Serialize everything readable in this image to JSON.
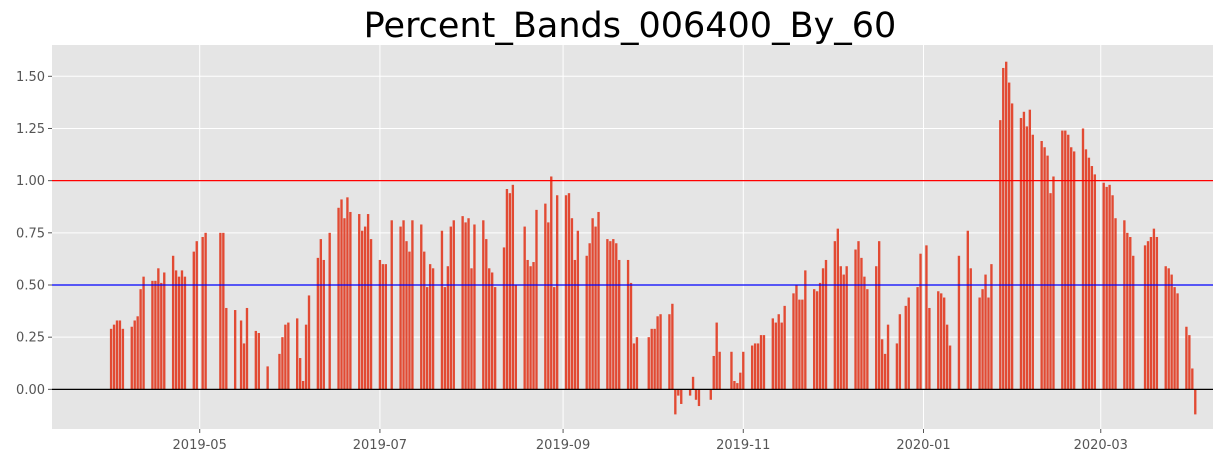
{
  "chart_data": {
    "type": "bar",
    "title": "Percent_Bands_006400_By_60",
    "xlabel": "",
    "ylabel": "",
    "x_range": [
      "2019-03-12",
      "2020-04-08"
    ],
    "ylim": [
      -0.19,
      1.65
    ],
    "grid": true,
    "legend": "none",
    "x_tick_labels": [
      "2019-05",
      "2019-07",
      "2019-09",
      "2019-11",
      "2020-01",
      "2020-03"
    ],
    "x_tick_dates": [
      "2019-05-01",
      "2019-07-01",
      "2019-09-01",
      "2019-11-01",
      "2020-01-01",
      "2020-03-01"
    ],
    "y_tick_labels": [
      "0.00",
      "0.25",
      "0.50",
      "0.75",
      "1.00",
      "1.25",
      "1.50"
    ],
    "y_ticks": [
      0.0,
      0.25,
      0.5,
      0.75,
      1.0,
      1.25,
      1.5
    ],
    "reference_lines": [
      {
        "y": 1.0,
        "color": "#ff0000"
      },
      {
        "y": 0.5,
        "color": "#0000ff"
      },
      {
        "y": 0.0,
        "color": "#000000"
      }
    ],
    "series": [
      {
        "color": "#e24a33",
        "points": [
          [
            "2019-04-01",
            0.29
          ],
          [
            "2019-04-02",
            0.31
          ],
          [
            "2019-04-03",
            0.33
          ],
          [
            "2019-04-04",
            0.33
          ],
          [
            "2019-04-05",
            0.29
          ],
          [
            "2019-04-08",
            0.3
          ],
          [
            "2019-04-09",
            0.33
          ],
          [
            "2019-04-10",
            0.35
          ],
          [
            "2019-04-11",
            0.48
          ],
          [
            "2019-04-12",
            0.54
          ],
          [
            "2019-04-15",
            0.52
          ],
          [
            "2019-04-16",
            0.52
          ],
          [
            "2019-04-17",
            0.58
          ],
          [
            "2019-04-18",
            0.51
          ],
          [
            "2019-04-19",
            0.56
          ],
          [
            "2019-04-22",
            0.64
          ],
          [
            "2019-04-23",
            0.57
          ],
          [
            "2019-04-24",
            0.54
          ],
          [
            "2019-04-25",
            0.57
          ],
          [
            "2019-04-26",
            0.54
          ],
          [
            "2019-04-29",
            0.66
          ],
          [
            "2019-04-30",
            0.71
          ],
          [
            "2019-05-02",
            0.73
          ],
          [
            "2019-05-03",
            0.75
          ],
          [
            "2019-05-08",
            0.75
          ],
          [
            "2019-05-09",
            0.75
          ],
          [
            "2019-05-10",
            0.39
          ],
          [
            "2019-05-13",
            0.38
          ],
          [
            "2019-05-15",
            0.33
          ],
          [
            "2019-05-16",
            0.22
          ],
          [
            "2019-05-17",
            0.39
          ],
          [
            "2019-05-20",
            0.28
          ],
          [
            "2019-05-21",
            0.27
          ],
          [
            "2019-05-24",
            0.11
          ],
          [
            "2019-05-28",
            0.17
          ],
          [
            "2019-05-29",
            0.25
          ],
          [
            "2019-05-30",
            0.31
          ],
          [
            "2019-05-31",
            0.32
          ],
          [
            "2019-06-03",
            0.34
          ],
          [
            "2019-06-04",
            0.15
          ],
          [
            "2019-06-05",
            0.04
          ],
          [
            "2019-06-06",
            0.31
          ],
          [
            "2019-06-07",
            0.45
          ],
          [
            "2019-06-10",
            0.63
          ],
          [
            "2019-06-11",
            0.72
          ],
          [
            "2019-06-12",
            0.62
          ],
          [
            "2019-06-14",
            0.75
          ],
          [
            "2019-06-17",
            0.87
          ],
          [
            "2019-06-18",
            0.91
          ],
          [
            "2019-06-19",
            0.82
          ],
          [
            "2019-06-20",
            0.92
          ],
          [
            "2019-06-21",
            0.85
          ],
          [
            "2019-06-24",
            0.84
          ],
          [
            "2019-06-25",
            0.76
          ],
          [
            "2019-06-26",
            0.78
          ],
          [
            "2019-06-27",
            0.84
          ],
          [
            "2019-06-28",
            0.72
          ],
          [
            "2019-07-01",
            0.62
          ],
          [
            "2019-07-02",
            0.6
          ],
          [
            "2019-07-03",
            0.6
          ],
          [
            "2019-07-05",
            0.81
          ],
          [
            "2019-07-08",
            0.78
          ],
          [
            "2019-07-09",
            0.81
          ],
          [
            "2019-07-10",
            0.71
          ],
          [
            "2019-07-11",
            0.66
          ],
          [
            "2019-07-12",
            0.81
          ],
          [
            "2019-07-15",
            0.79
          ],
          [
            "2019-07-16",
            0.66
          ],
          [
            "2019-07-17",
            0.49
          ],
          [
            "2019-07-18",
            0.6
          ],
          [
            "2019-07-19",
            0.58
          ],
          [
            "2019-07-22",
            0.76
          ],
          [
            "2019-07-23",
            0.49
          ],
          [
            "2019-07-24",
            0.59
          ],
          [
            "2019-07-25",
            0.78
          ],
          [
            "2019-07-26",
            0.81
          ],
          [
            "2019-07-29",
            0.83
          ],
          [
            "2019-07-30",
            0.8
          ],
          [
            "2019-07-31",
            0.82
          ],
          [
            "2019-08-01",
            0.58
          ],
          [
            "2019-08-02",
            0.79
          ],
          [
            "2019-08-05",
            0.81
          ],
          [
            "2019-08-06",
            0.72
          ],
          [
            "2019-08-07",
            0.58
          ],
          [
            "2019-08-08",
            0.56
          ],
          [
            "2019-08-09",
            0.49
          ],
          [
            "2019-08-12",
            0.68
          ],
          [
            "2019-08-13",
            0.96
          ],
          [
            "2019-08-14",
            0.94
          ],
          [
            "2019-08-15",
            0.98
          ],
          [
            "2019-08-16",
            0.5
          ],
          [
            "2019-08-19",
            0.78
          ],
          [
            "2019-08-20",
            0.62
          ],
          [
            "2019-08-21",
            0.59
          ],
          [
            "2019-08-22",
            0.61
          ],
          [
            "2019-08-23",
            0.86
          ],
          [
            "2019-08-26",
            0.89
          ],
          [
            "2019-08-27",
            0.8
          ],
          [
            "2019-08-28",
            1.02
          ],
          [
            "2019-08-29",
            0.49
          ],
          [
            "2019-08-30",
            0.93
          ],
          [
            "2019-09-02",
            0.93
          ],
          [
            "2019-09-03",
            0.94
          ],
          [
            "2019-09-04",
            0.82
          ],
          [
            "2019-09-05",
            0.62
          ],
          [
            "2019-09-06",
            0.76
          ],
          [
            "2019-09-09",
            0.64
          ],
          [
            "2019-09-10",
            0.7
          ],
          [
            "2019-09-11",
            0.82
          ],
          [
            "2019-09-12",
            0.78
          ],
          [
            "2019-09-13",
            0.85
          ],
          [
            "2019-09-16",
            0.72
          ],
          [
            "2019-09-17",
            0.71
          ],
          [
            "2019-09-18",
            0.72
          ],
          [
            "2019-09-19",
            0.7
          ],
          [
            "2019-09-20",
            0.62
          ],
          [
            "2019-09-23",
            0.62
          ],
          [
            "2019-09-24",
            0.51
          ],
          [
            "2019-09-25",
            0.22
          ],
          [
            "2019-09-26",
            0.25
          ],
          [
            "2019-09-30",
            0.25
          ],
          [
            "2019-10-01",
            0.29
          ],
          [
            "2019-10-02",
            0.29
          ],
          [
            "2019-10-03",
            0.35
          ],
          [
            "2019-10-04",
            0.36
          ],
          [
            "2019-10-07",
            0.36
          ],
          [
            "2019-10-08",
            0.41
          ],
          [
            "2019-10-09",
            -0.12
          ],
          [
            "2019-10-10",
            -0.03
          ],
          [
            "2019-10-11",
            -0.07
          ],
          [
            "2019-10-14",
            -0.03
          ],
          [
            "2019-10-15",
            0.06
          ],
          [
            "2019-10-16",
            -0.05
          ],
          [
            "2019-10-17",
            -0.08
          ],
          [
            "2019-10-21",
            -0.05
          ],
          [
            "2019-10-22",
            0.16
          ],
          [
            "2019-10-23",
            0.32
          ],
          [
            "2019-10-24",
            0.18
          ],
          [
            "2019-10-28",
            0.18
          ],
          [
            "2019-10-29",
            0.04
          ],
          [
            "2019-10-30",
            0.03
          ],
          [
            "2019-10-31",
            0.08
          ],
          [
            "2019-11-01",
            0.18
          ],
          [
            "2019-11-04",
            0.21
          ],
          [
            "2019-11-05",
            0.22
          ],
          [
            "2019-11-06",
            0.22
          ],
          [
            "2019-11-07",
            0.26
          ],
          [
            "2019-11-08",
            0.26
          ],
          [
            "2019-11-11",
            0.34
          ],
          [
            "2019-11-12",
            0.32
          ],
          [
            "2019-11-13",
            0.36
          ],
          [
            "2019-11-14",
            0.32
          ],
          [
            "2019-11-15",
            0.4
          ],
          [
            "2019-11-18",
            0.46
          ],
          [
            "2019-11-19",
            0.5
          ],
          [
            "2019-11-20",
            0.43
          ],
          [
            "2019-11-21",
            0.43
          ],
          [
            "2019-11-22",
            0.57
          ],
          [
            "2019-11-25",
            0.48
          ],
          [
            "2019-11-26",
            0.47
          ],
          [
            "2019-11-27",
            0.51
          ],
          [
            "2019-11-28",
            0.58
          ],
          [
            "2019-11-29",
            0.62
          ],
          [
            "2019-12-02",
            0.71
          ],
          [
            "2019-12-03",
            0.77
          ],
          [
            "2019-12-04",
            0.59
          ],
          [
            "2019-12-05",
            0.55
          ],
          [
            "2019-12-06",
            0.59
          ],
          [
            "2019-12-09",
            0.67
          ],
          [
            "2019-12-10",
            0.71
          ],
          [
            "2019-12-11",
            0.63
          ],
          [
            "2019-12-12",
            0.54
          ],
          [
            "2019-12-13",
            0.48
          ],
          [
            "2019-12-16",
            0.59
          ],
          [
            "2019-12-17",
            0.71
          ],
          [
            "2019-12-18",
            0.24
          ],
          [
            "2019-12-19",
            0.17
          ],
          [
            "2019-12-20",
            0.31
          ],
          [
            "2019-12-23",
            0.22
          ],
          [
            "2019-12-24",
            0.36
          ],
          [
            "2019-12-26",
            0.4
          ],
          [
            "2019-12-27",
            0.44
          ],
          [
            "2019-12-30",
            0.49
          ],
          [
            "2019-12-31",
            0.65
          ],
          [
            "2020-01-02",
            0.69
          ],
          [
            "2020-01-03",
            0.39
          ],
          [
            "2020-01-06",
            0.47
          ],
          [
            "2020-01-07",
            0.46
          ],
          [
            "2020-01-08",
            0.44
          ],
          [
            "2020-01-09",
            0.31
          ],
          [
            "2020-01-10",
            0.21
          ],
          [
            "2020-01-13",
            0.64
          ],
          [
            "2020-01-16",
            0.76
          ],
          [
            "2020-01-17",
            0.58
          ],
          [
            "2020-01-20",
            0.44
          ],
          [
            "2020-01-21",
            0.48
          ],
          [
            "2020-01-22",
            0.55
          ],
          [
            "2020-01-23",
            0.44
          ],
          [
            "2020-01-24",
            0.6
          ],
          [
            "2020-01-27",
            1.29
          ],
          [
            "2020-01-28",
            1.54
          ],
          [
            "2020-01-29",
            1.57
          ],
          [
            "2020-01-30",
            1.47
          ],
          [
            "2020-01-31",
            1.37
          ],
          [
            "2020-02-03",
            1.3
          ],
          [
            "2020-02-04",
            1.33
          ],
          [
            "2020-02-05",
            1.26
          ],
          [
            "2020-02-06",
            1.34
          ],
          [
            "2020-02-07",
            1.22
          ],
          [
            "2020-02-10",
            1.19
          ],
          [
            "2020-02-11",
            1.16
          ],
          [
            "2020-02-12",
            1.12
          ],
          [
            "2020-02-13",
            0.94
          ],
          [
            "2020-02-14",
            1.02
          ],
          [
            "2020-02-17",
            1.24
          ],
          [
            "2020-02-18",
            1.24
          ],
          [
            "2020-02-19",
            1.22
          ],
          [
            "2020-02-20",
            1.16
          ],
          [
            "2020-02-21",
            1.14
          ],
          [
            "2020-02-24",
            1.25
          ],
          [
            "2020-02-25",
            1.15
          ],
          [
            "2020-02-26",
            1.11
          ],
          [
            "2020-02-27",
            1.07
          ],
          [
            "2020-02-28",
            1.03
          ],
          [
            "2020-03-02",
            0.99
          ],
          [
            "2020-03-03",
            0.97
          ],
          [
            "2020-03-04",
            0.98
          ],
          [
            "2020-03-05",
            0.93
          ],
          [
            "2020-03-06",
            0.82
          ],
          [
            "2020-03-09",
            0.81
          ],
          [
            "2020-03-10",
            0.75
          ],
          [
            "2020-03-11",
            0.73
          ],
          [
            "2020-03-12",
            0.64
          ],
          [
            "2020-03-16",
            0.69
          ],
          [
            "2020-03-17",
            0.71
          ],
          [
            "2020-03-18",
            0.73
          ],
          [
            "2020-03-19",
            0.77
          ],
          [
            "2020-03-20",
            0.73
          ],
          [
            "2020-03-23",
            0.59
          ],
          [
            "2020-03-24",
            0.58
          ],
          [
            "2020-03-25",
            0.55
          ],
          [
            "2020-03-26",
            0.49
          ],
          [
            "2020-03-27",
            0.46
          ],
          [
            "2020-03-30",
            0.3
          ],
          [
            "2020-03-31",
            0.26
          ],
          [
            "2020-04-01",
            0.1
          ],
          [
            "2020-04-02",
            -0.12
          ]
        ]
      }
    ]
  }
}
